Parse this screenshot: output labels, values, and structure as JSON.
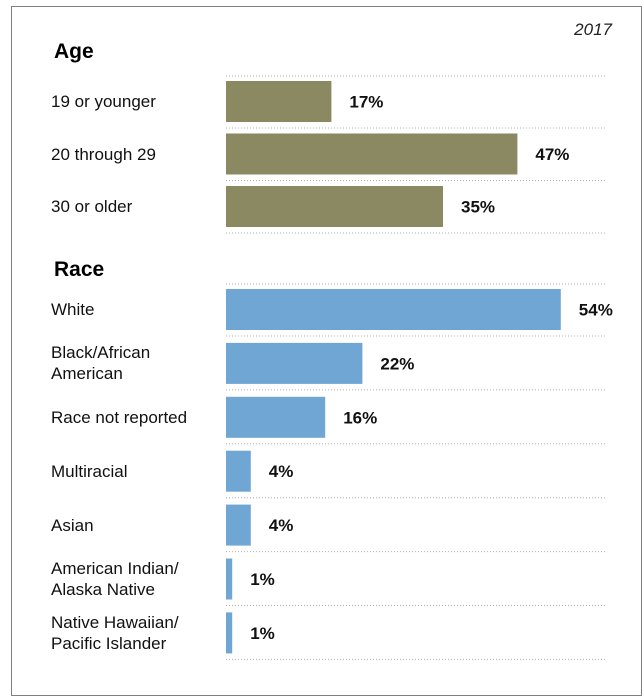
{
  "year_label": "2017",
  "colors": {
    "age": "#8b8962",
    "race": "#6fa6d3",
    "gridline": "#b0b0b0"
  },
  "chart_data": [
    {
      "type": "bar",
      "orientation": "horizontal",
      "title": "Age",
      "categories": [
        "19 or younger",
        "20 through 29",
        "30 or older"
      ],
      "values": [
        17,
        47,
        35
      ],
      "value_labels": [
        "17%",
        "47%",
        "35%"
      ],
      "unit": "%",
      "xlim": [
        0,
        54
      ],
      "grid": "dotted separators between rows"
    },
    {
      "type": "bar",
      "orientation": "horizontal",
      "title": "Race",
      "categories": [
        "White",
        "Black/African American",
        "Race not reported",
        "Multiracial",
        "Asian",
        "American Indian/ Alaska Native",
        "Native Hawaiian/ Pacific Islander"
      ],
      "category_lines": [
        [
          "White"
        ],
        [
          "Black/African",
          "American"
        ],
        [
          "Race not reported"
        ],
        [
          "Multiracial"
        ],
        [
          "Asian"
        ],
        [
          "American Indian/",
          "Alaska Native"
        ],
        [
          "Native Hawaiian/",
          "Pacific Islander"
        ]
      ],
      "values": [
        54,
        22,
        16,
        4,
        4,
        1,
        1
      ],
      "value_labels": [
        "54%",
        "22%",
        "16%",
        "4%",
        "4%",
        "1%",
        "1%"
      ],
      "unit": "%",
      "xlim": [
        0,
        54
      ],
      "grid": "dotted separators between rows"
    }
  ]
}
